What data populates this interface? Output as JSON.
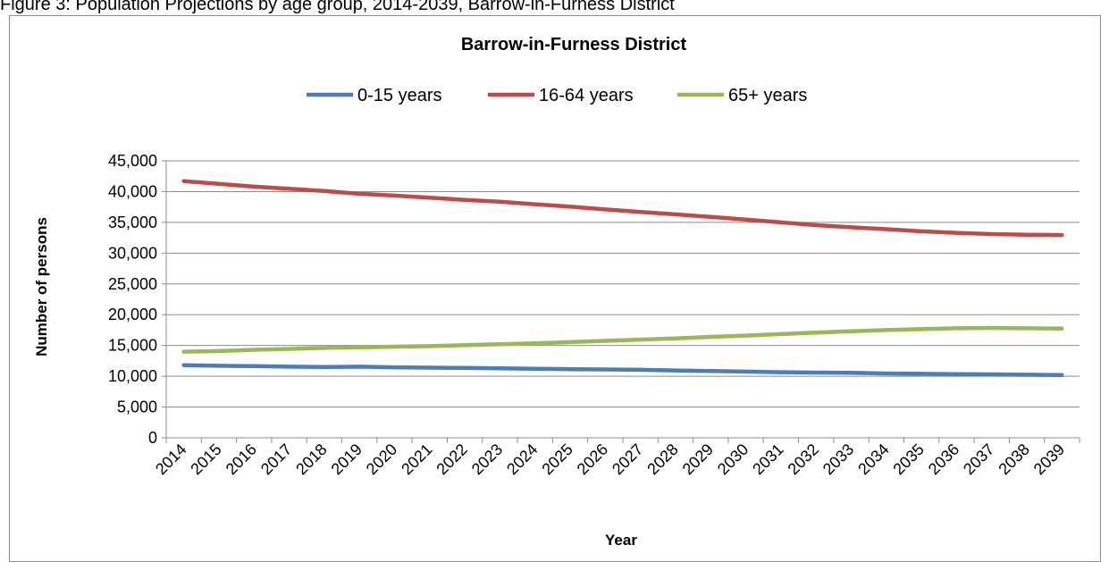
{
  "caption": "Figure 3: Population Projections by age group, 2014-2039, Barrow-in-Furness District",
  "chart_data": {
    "type": "line",
    "title": "Barrow-in-Furness District",
    "xlabel": "Year",
    "ylabel": "Number of persons",
    "ylim": [
      0,
      45000
    ],
    "yticks": [
      0,
      5000,
      10000,
      15000,
      20000,
      25000,
      30000,
      35000,
      40000,
      45000
    ],
    "ytick_labels": [
      "0",
      "5,000",
      "10,000",
      "15,000",
      "20,000",
      "25,000",
      "30,000",
      "35,000",
      "40,000",
      "45,000"
    ],
    "grid": "horizontal",
    "legend": "top",
    "categories": [
      "2014",
      "2015",
      "2016",
      "2017",
      "2018",
      "2019",
      "2020",
      "2021",
      "2022",
      "2023",
      "2024",
      "2025",
      "2026",
      "2027",
      "2028",
      "2029",
      "2030",
      "2031",
      "2032",
      "2033",
      "2034",
      "2035",
      "2036",
      "2037",
      "2038",
      "2039"
    ],
    "series": [
      {
        "name": "0-15 years",
        "color": "#4a7ebb",
        "values": [
          11800,
          11700,
          11650,
          11550,
          11500,
          11550,
          11450,
          11400,
          11350,
          11300,
          11200,
          11150,
          11100,
          11050,
          10950,
          10850,
          10750,
          10650,
          10600,
          10550,
          10450,
          10400,
          10350,
          10300,
          10250,
          10200
        ]
      },
      {
        "name": "16-64 years",
        "color": "#be4b48",
        "values": [
          41700,
          41250,
          40800,
          40450,
          40100,
          39650,
          39350,
          39000,
          38650,
          38350,
          37950,
          37550,
          37100,
          36700,
          36300,
          35900,
          35450,
          35000,
          34550,
          34200,
          33900,
          33550,
          33300,
          33100,
          33000,
          32950
        ]
      },
      {
        "name": "65+ years",
        "color": "#98b954",
        "values": [
          14000,
          14100,
          14300,
          14450,
          14600,
          14700,
          14800,
          14900,
          15050,
          15200,
          15350,
          15550,
          15750,
          15950,
          16150,
          16400,
          16600,
          16850,
          17100,
          17300,
          17500,
          17650,
          17800,
          17850,
          17800,
          17750
        ]
      }
    ]
  }
}
